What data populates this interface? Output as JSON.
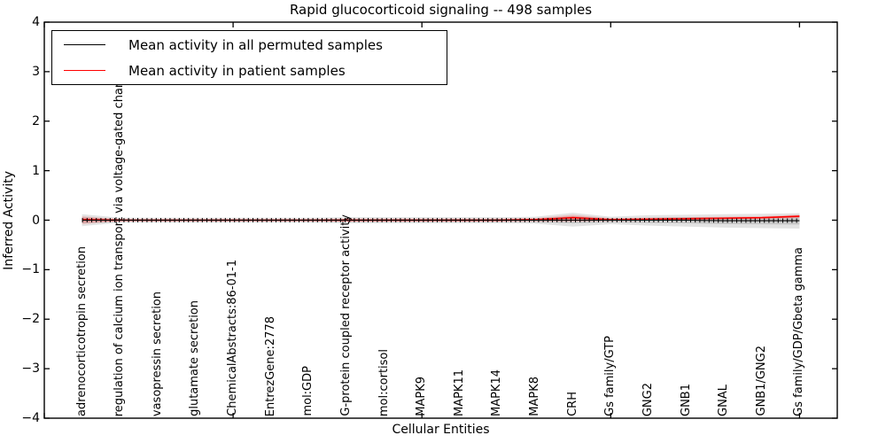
{
  "figure": {
    "title": "Rapid glucocorticoid signaling -- 498 samples",
    "xlabel": "Cellular Entities",
    "ylabel": "Inferred Activity"
  },
  "legend": {
    "items": [
      {
        "label": "Mean activity in all permuted samples",
        "color": "#000000"
      },
      {
        "label": "Mean activity in patient samples",
        "color": "#ff0000"
      }
    ]
  },
  "chart_data": {
    "type": "line",
    "title": "Rapid glucocorticoid signaling -- 498 samples",
    "xlabel": "Cellular Entities",
    "ylabel": "Inferred Activity",
    "ylim": [
      -4,
      4
    ],
    "xlim": [
      0,
      21
    ],
    "grid": false,
    "legend_position": "upper left",
    "yticks": [
      "4",
      "3",
      "2",
      "1",
      "0",
      "−1",
      "−2",
      "−3",
      "−4"
    ],
    "ytick_values": [
      4,
      3,
      2,
      1,
      0,
      -1,
      -2,
      -3,
      -4
    ],
    "frame_xtick_values": [
      0,
      5,
      10,
      15,
      20
    ],
    "categories": [
      "adrenocorticotropin secretion",
      "regulation of calcium ion transport via voltage-gated channel",
      "vasopressin secretion",
      "glutamate secretion",
      "ChemicalAbstracts:86-01-1",
      "EntrezGene:2778",
      "mol:GDP",
      "G-protein coupled receptor activity",
      "mol:cortisol",
      "MAPK9",
      "MAPK11",
      "MAPK14",
      "MAPK8",
      "CRH",
      "Gs family/GTP",
      "GNG2",
      "GNB1",
      "GNAL",
      "GNB1/GNG2",
      "Gs family/GDP/Gbeta gamma"
    ],
    "series": [
      {
        "name": "Mean activity in all permuted samples",
        "color": "#000000",
        "style": "solid line with plus markers",
        "values": [
          0,
          0,
          0,
          0,
          0,
          0,
          0,
          0,
          0,
          0,
          0,
          0,
          0,
          0,
          0,
          0,
          0,
          -0.01,
          -0.01,
          -0.01
        ]
      },
      {
        "name": "Mean activity in patient samples",
        "color": "#ff0000",
        "style": "solid",
        "values": [
          0.01,
          0,
          0,
          0,
          0,
          0,
          0,
          0,
          0,
          0,
          0,
          0,
          0.01,
          0.05,
          0.01,
          0.02,
          0.03,
          0.04,
          0.05,
          0.08
        ]
      }
    ],
    "bands": [
      {
        "name": "permuted samples activity spread",
        "color": "rgba(0,0,0,0.11)",
        "center_series": 0,
        "hi": [
          0.12,
          0.05,
          0.05,
          0.05,
          0.05,
          0.05,
          0.05,
          0.06,
          0.06,
          0.06,
          0.06,
          0.06,
          0.07,
          0.15,
          0.07,
          0.1,
          0.11,
          0.12,
          0.13,
          0.14
        ],
        "lo": [
          -0.12,
          -0.05,
          -0.05,
          -0.05,
          -0.05,
          -0.05,
          -0.05,
          -0.06,
          -0.06,
          -0.06,
          -0.06,
          -0.06,
          -0.07,
          -0.13,
          -0.08,
          -0.11,
          -0.13,
          -0.15,
          -0.16,
          -0.17
        ]
      },
      {
        "name": "patient samples activity spread",
        "color": "rgba(255,0,0,0.16)",
        "center_series": 1,
        "hi": [
          0.08,
          0.02,
          0.02,
          0.02,
          0.02,
          0.02,
          0.02,
          0.03,
          0.03,
          0.03,
          0.03,
          0.03,
          0.04,
          0.11,
          0.04,
          0.05,
          0.06,
          0.07,
          0.08,
          0.11
        ],
        "lo": [
          -0.08,
          -0.02,
          -0.02,
          -0.02,
          -0.02,
          -0.02,
          -0.02,
          -0.03,
          -0.03,
          -0.03,
          -0.03,
          -0.03,
          -0.03,
          -0.03,
          -0.02,
          -0.01,
          0.0,
          0.01,
          0.02,
          0.04
        ]
      }
    ]
  }
}
